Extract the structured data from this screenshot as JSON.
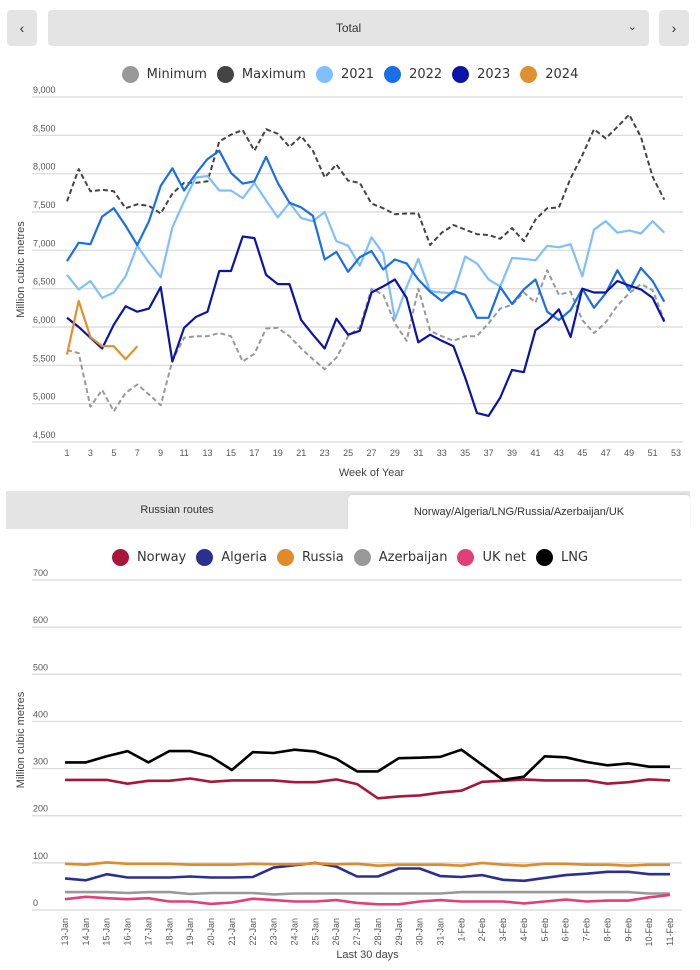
{
  "header": {
    "prev_label": "‹",
    "next_label": "›",
    "selector_value": "Total",
    "selector_chevron": "⌄"
  },
  "tabs": [
    {
      "label": "Russian routes",
      "active": false
    },
    {
      "label": "Norway/Algeria/LNG/Russia/Azerbaijan/UK",
      "active": true
    }
  ],
  "chart_data": [
    {
      "type": "line",
      "title": "",
      "xlabel": "Week of Year",
      "ylabel": "Million cubic metres",
      "ylim": [
        4500,
        9000
      ],
      "yticks": [
        4500,
        5000,
        5500,
        6000,
        6500,
        7000,
        7500,
        8000,
        8500,
        9000
      ],
      "ytick_labels": [
        "4,500",
        "5,000",
        "5,500",
        "6,000",
        "6,500",
        "7,000",
        "7,500",
        "8,000",
        "8,500",
        "9,000"
      ],
      "xlim": [
        1,
        53
      ],
      "xticks": [
        1,
        3,
        5,
        7,
        9,
        11,
        13,
        15,
        17,
        19,
        21,
        23,
        25,
        27,
        29,
        31,
        33,
        35,
        37,
        39,
        41,
        43,
        45,
        47,
        49,
        51,
        53
      ],
      "grid": true,
      "legend_position": "top-center",
      "series": [
        {
          "name": "Minimum",
          "color": "#999999",
          "dashed": true,
          "values": [
            5700,
            5660,
            4960,
            5180,
            4900,
            5140,
            5250,
            5120,
            4980,
            5560,
            5860,
            5880,
            5880,
            5920,
            5880,
            5550,
            5650,
            5980,
            5990,
            5880,
            5720,
            5580,
            5450,
            5600,
            5880,
            6000,
            6500,
            6420,
            6050,
            5820,
            6500,
            5950,
            5880,
            5820,
            5880,
            5880,
            6050,
            6240,
            6290,
            6450,
            6320,
            6740,
            6420,
            6460,
            6090,
            5920,
            6060,
            6280,
            6440,
            6560,
            6480,
            6090
          ]
        },
        {
          "name": "Maximum",
          "color": "#444444",
          "dashed": true,
          "values": [
            7640,
            8060,
            7770,
            7790,
            7770,
            7550,
            7600,
            7580,
            7480,
            7740,
            7880,
            7880,
            7900,
            8420,
            8510,
            8570,
            8300,
            8580,
            8520,
            8350,
            8490,
            8300,
            7950,
            8120,
            7910,
            7880,
            7610,
            7550,
            7470,
            7480,
            7480,
            7070,
            7230,
            7330,
            7270,
            7210,
            7200,
            7150,
            7290,
            7120,
            7400,
            7550,
            7560,
            7940,
            8240,
            8580,
            8460,
            8610,
            8770,
            8480,
            7960,
            7660
          ]
        },
        {
          "name": "2021",
          "color": "#7fbfff",
          "dashed": false,
          "values": [
            6680,
            6490,
            6600,
            6380,
            6450,
            6660,
            7060,
            6840,
            6650,
            7300,
            7640,
            7950,
            7970,
            7780,
            7780,
            7680,
            7880,
            7650,
            7430,
            7620,
            7420,
            7380,
            7500,
            7120,
            7060,
            6800,
            7170,
            6960,
            6100,
            6520,
            6890,
            6470,
            6450,
            6440,
            6920,
            6830,
            6620,
            6530,
            6900,
            6890,
            6870,
            7060,
            7040,
            7080,
            6660,
            7270,
            7380,
            7230,
            7260,
            7220,
            7380,
            7230
          ]
        },
        {
          "name": "2022",
          "color": "#1a6fe8",
          "dashed": false,
          "values": [
            6860,
            7100,
            7080,
            7440,
            7550,
            7320,
            7070,
            7380,
            7840,
            8070,
            7780,
            8000,
            8190,
            8300,
            8010,
            7870,
            7900,
            8220,
            7880,
            7620,
            7560,
            7450,
            6880,
            6980,
            6720,
            6910,
            6990,
            6750,
            6880,
            6830,
            6620,
            6460,
            6340,
            6470,
            6420,
            6120,
            6120,
            6520,
            6300,
            6490,
            6620,
            6200,
            6090,
            6220,
            6500,
            6250,
            6440,
            6740,
            6480,
            6770,
            6600,
            6330
          ]
        },
        {
          "name": "2023",
          "color": "#0a14a8",
          "dashed": false,
          "values": [
            6120,
            6000,
            5860,
            5720,
            6030,
            6270,
            6200,
            6240,
            6520,
            5550,
            5990,
            6130,
            6200,
            6730,
            6730,
            7180,
            7160,
            6680,
            6560,
            6560,
            6090,
            5900,
            5720,
            6110,
            5900,
            5950,
            6450,
            6530,
            6620,
            6380,
            5800,
            5900,
            5820,
            5750,
            5340,
            4880,
            4840,
            5080,
            5440,
            5410,
            5960,
            6070,
            6230,
            5870,
            6500,
            6450,
            6450,
            6600,
            6540,
            6490,
            6380,
            6070
          ]
        },
        {
          "name": "2024",
          "color": "#e0902e",
          "dashed": false,
          "values": [
            5640,
            6340,
            5870,
            5750,
            5750,
            5580,
            5750
          ]
        }
      ]
    },
    {
      "type": "line",
      "title": "",
      "xlabel": "Last 30 days",
      "ylabel": "Million cubic metres",
      "ylim": [
        0,
        700
      ],
      "yticks": [
        0,
        100,
        200,
        300,
        400,
        500,
        600,
        700
      ],
      "ytick_labels": [
        "0",
        "100",
        "200",
        "300",
        "400",
        "500",
        "600",
        "700"
      ],
      "grid": true,
      "legend_position": "top-center",
      "categories": [
        "13-Jan",
        "14-Jan",
        "15-Jan",
        "16-Jan",
        "17-Jan",
        "18-Jan",
        "19-Jan",
        "20-Jan",
        "21-Jan",
        "22-Jan",
        "23-Jan",
        "24-Jan",
        "25-Jan",
        "26-Jan",
        "27-Jan",
        "28-Jan",
        "29-Jan",
        "30-Jan",
        "31-Jan",
        "1-Feb",
        "2-Feb",
        "3-Feb",
        "4-Feb",
        "5-Feb",
        "6-Feb",
        "7-Feb",
        "8-Feb",
        "9-Feb",
        "10-Feb",
        "11-Feb"
      ],
      "series": [
        {
          "name": "Norway",
          "color": "#a8163a",
          "values": [
            276,
            276,
            276,
            268,
            274,
            274,
            279,
            272,
            275,
            275,
            275,
            271,
            271,
            277,
            267,
            237,
            241,
            243,
            249,
            253,
            272,
            274,
            277,
            275,
            275,
            275,
            268,
            271,
            277,
            275
          ]
        },
        {
          "name": "Algeria",
          "color": "#2b2f8f",
          "values": [
            67,
            63,
            76,
            69,
            69,
            69,
            71,
            69,
            69,
            70,
            90,
            95,
            100,
            92,
            71,
            71,
            88,
            88,
            72,
            70,
            74,
            64,
            62,
            68,
            74,
            77,
            81,
            81,
            76,
            76
          ]
        },
        {
          "name": "Russia",
          "color": "#e08a2a",
          "values": [
            98,
            96,
            101,
            98,
            98,
            98,
            96,
            96,
            96,
            98,
            97,
            97,
            99,
            97,
            98,
            94,
            96,
            96,
            96,
            94,
            100,
            96,
            94,
            98,
            98,
            96,
            96,
            94,
            96,
            96
          ]
        },
        {
          "name": "Azerbaijan",
          "color": "#999999",
          "values": [
            38,
            38,
            38,
            36,
            38,
            38,
            34,
            36,
            36,
            36,
            33,
            35,
            35,
            35,
            35,
            35,
            35,
            35,
            35,
            38,
            38,
            38,
            38,
            38,
            38,
            38,
            38,
            38,
            35,
            35
          ]
        },
        {
          "name": "UK net",
          "color": "#e23e78",
          "values": [
            23,
            28,
            25,
            23,
            25,
            18,
            18,
            13,
            16,
            24,
            21,
            18,
            18,
            21,
            15,
            12,
            12,
            18,
            21,
            18,
            18,
            18,
            14,
            18,
            22,
            18,
            20,
            20,
            27,
            32
          ]
        },
        {
          "name": "LNG",
          "color": "#000000",
          "values": [
            313,
            313,
            326,
            337,
            313,
            337,
            337,
            325,
            297,
            335,
            333,
            340,
            336,
            321,
            294,
            294,
            322,
            323,
            325,
            340,
            308,
            276,
            283,
            326,
            324,
            314,
            307,
            311,
            304,
            304
          ]
        }
      ]
    }
  ]
}
